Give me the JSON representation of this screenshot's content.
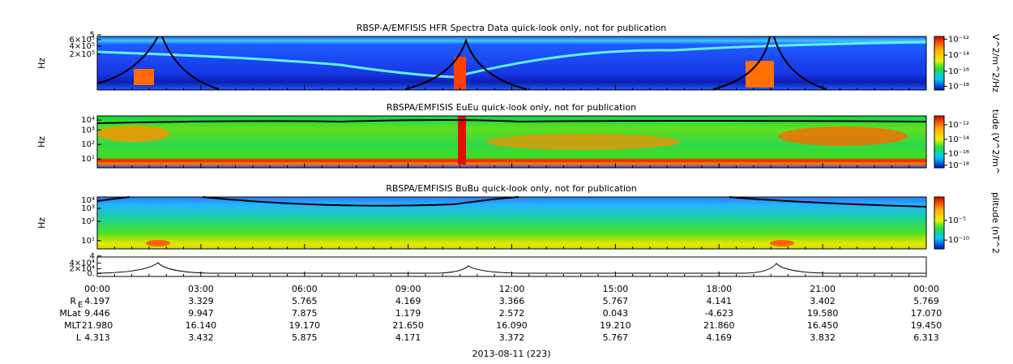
{
  "panels": [
    {
      "title": "RBSP-A/EMFISIS  HFR Spectra Data quick-look only, not for publication",
      "y_label": "Hz",
      "yticks": [
        "5",
        "6×10⁵",
        "4×10⁵",
        "2×10⁵"
      ],
      "colorbar_label": "V^2/m^2/Hz",
      "colorbar_ticks": [
        "10⁻¹²",
        "10⁻¹⁴",
        "10⁻¹⁶",
        "10⁻¹⁸"
      ]
    },
    {
      "title": "RBSPA/EMFISIS  EuEu quick-look only, not for publication",
      "y_label": "Hz",
      "yticks": [
        "10⁴",
        "10³",
        "10²",
        "10¹"
      ],
      "colorbar_label": "tude (V^2/m^",
      "colorbar_ticks": [
        "10⁻¹²",
        "10⁻¹⁴",
        "10⁻¹⁶",
        "10⁻¹⁸"
      ]
    },
    {
      "title": "RBSPA/EMFISIS  BuBu quick-look only, not for publication",
      "y_label": "Hz",
      "yticks": [
        "10⁴",
        "10³",
        "10²",
        "10¹"
      ],
      "colorbar_label": "plitude (nT^2",
      "colorbar_ticks": [
        "10⁻⁵",
        "10⁻¹⁰"
      ]
    },
    {
      "yticks": [
        "4",
        "4×10⁴",
        "2×10⁴",
        "0."
      ]
    }
  ],
  "x_axis": {
    "ticks": [
      "00:00",
      "03:00",
      "06:00",
      "09:00",
      "12:00",
      "15:00",
      "18:00",
      "21:00",
      "00:00"
    ],
    "date": "2013-08-11 (223)"
  },
  "ephemeris": [
    {
      "label": "R",
      "sub": "E",
      "values": [
        "4.197",
        "3.329",
        "5.765",
        "4.169",
        "3.366",
        "5.767",
        "4.141",
        "3.402",
        "5.769"
      ]
    },
    {
      "label": "MLat",
      "values": [
        "9.446",
        "9.947",
        "7.875",
        "1.179",
        "2.572",
        "0.043",
        "-4.623",
        "19.580",
        "17.070"
      ]
    },
    {
      "label": "MLT",
      "values": [
        "21.980",
        "16.140",
        "19.170",
        "21.650",
        "16.090",
        "19.210",
        "21.860",
        "16.450",
        "19.450"
      ]
    },
    {
      "label": "L",
      "values": [
        "4.313",
        "3.432",
        "5.875",
        "4.171",
        "3.372",
        "5.767",
        "4.169",
        "3.832",
        "6.313"
      ]
    }
  ]
}
